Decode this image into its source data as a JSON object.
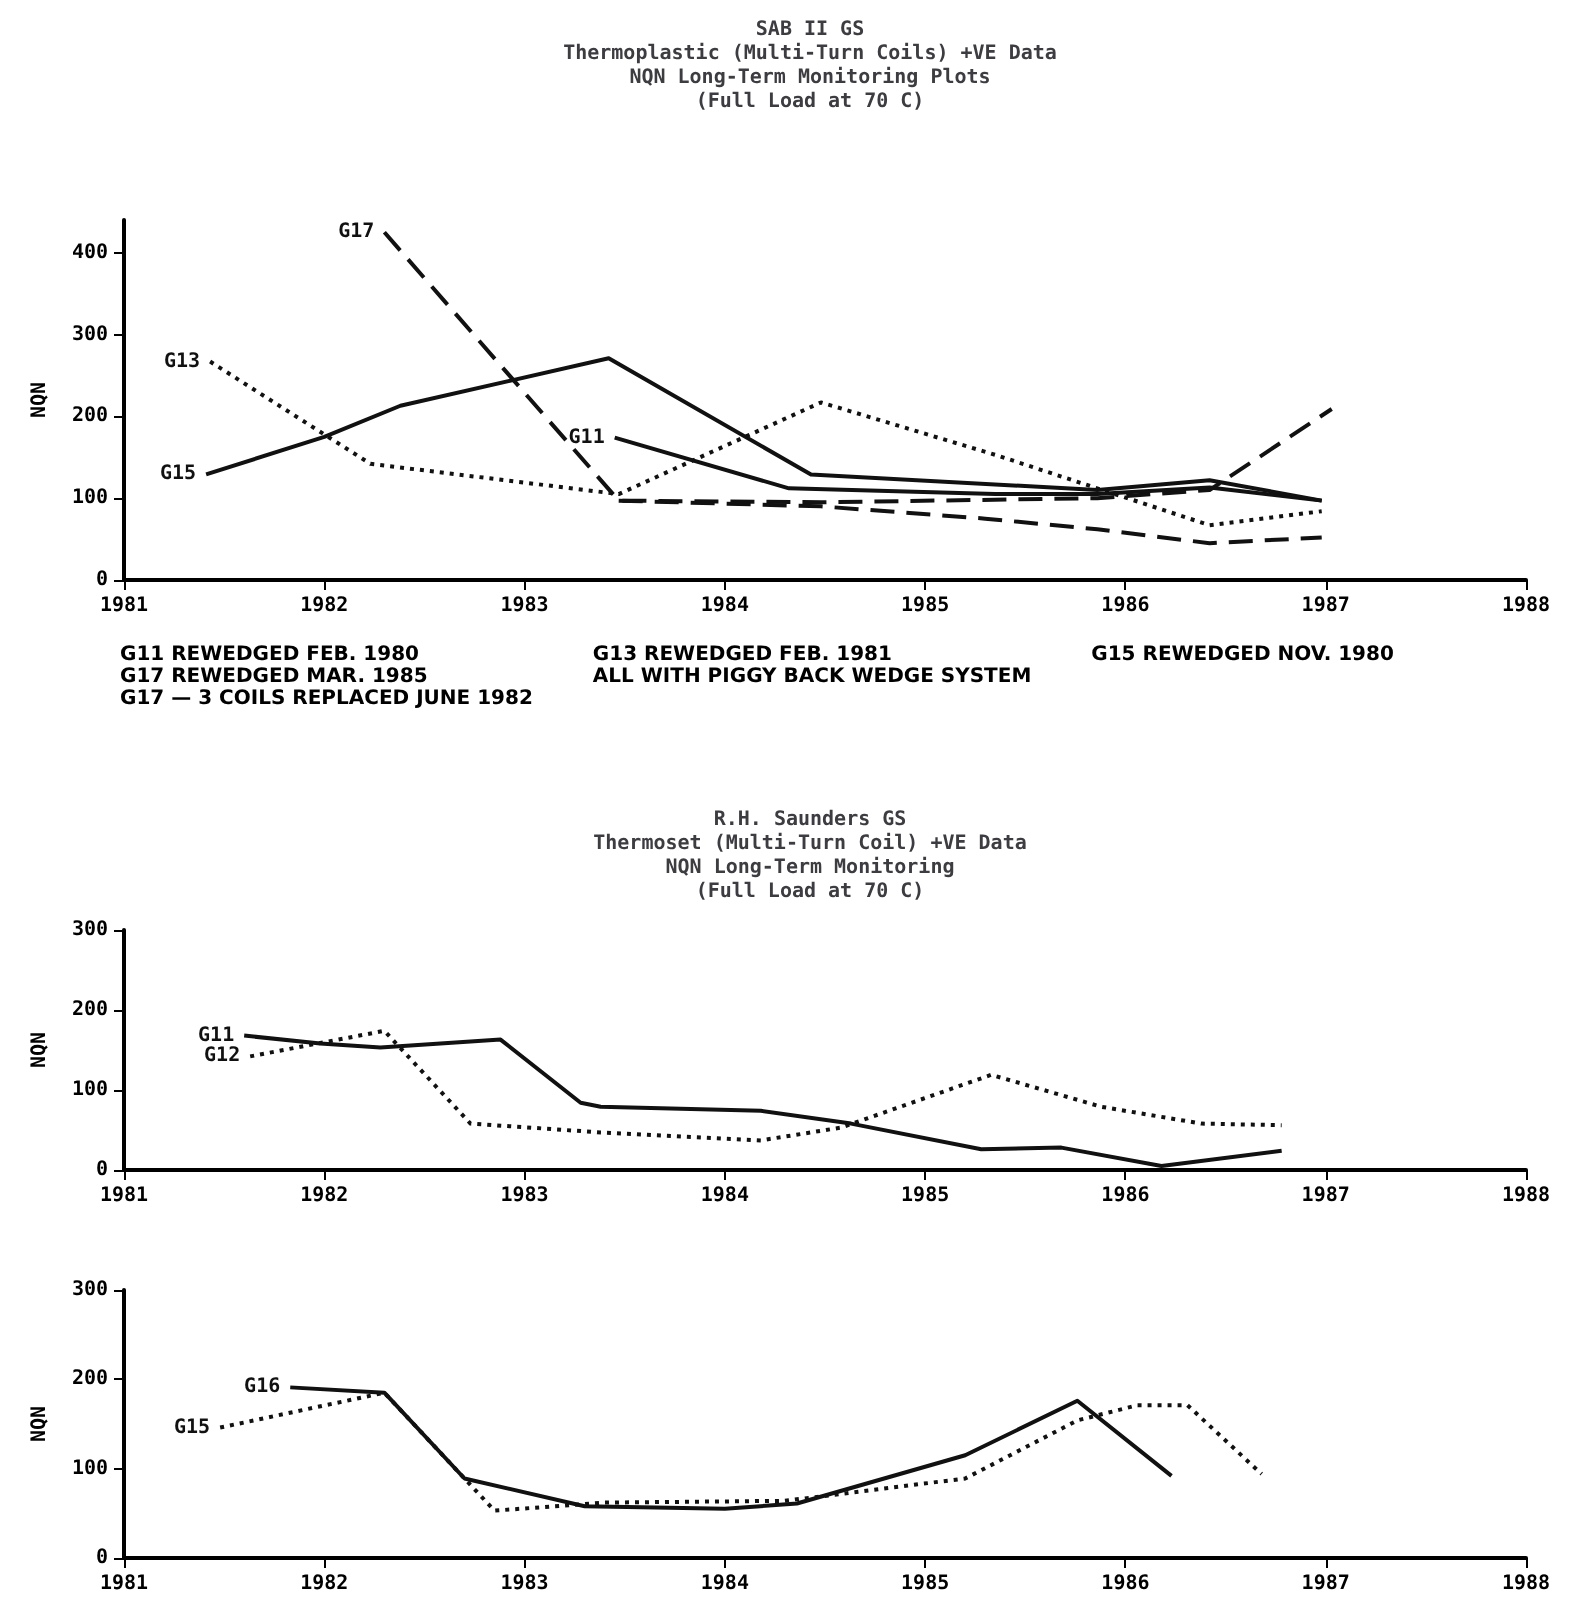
{
  "chart_data": [
    {
      "type": "line",
      "title": "SAB II GS\nThermoplastic (Multi-Turn Coils) +VE Data\nNQN Long-Term Monitoring Plots\n(Full Load at 70 C)",
      "ylabel": "NQN",
      "xlim": [
        1981,
        1988
      ],
      "xticks": [
        1981,
        1982,
        1983,
        1984,
        1985,
        1986,
        1987,
        1988
      ],
      "ylim": [
        0,
        440
      ],
      "yticks": [
        0,
        100,
        200,
        300,
        400
      ],
      "grid": false,
      "legend": false,
      "marker": "none",
      "series": [
        {
          "name": "G17",
          "color": "#111111",
          "line_style": "dashed",
          "x": [
            1982.3,
            1983.47,
            1984.48,
            1985.86,
            1986.42,
            1987.03
          ],
          "values": [
            425,
            97,
            95,
            100,
            110,
            209
          ]
        },
        {
          "name": "G13",
          "color": "#111111",
          "line_style": "dotted",
          "x": [
            1981.43,
            1982.23,
            1983.47,
            1984.48,
            1985.35,
            1986.42,
            1986.98
          ],
          "values": [
            267,
            142,
            105,
            217,
            153,
            67,
            84
          ]
        },
        {
          "name": "G11",
          "color": "#111111",
          "line_style": "solid",
          "x": [
            1983.45,
            1984.32,
            1985.35,
            1985.86,
            1986.42,
            1986.98
          ],
          "values": [
            174,
            112,
            105,
            105,
            113,
            97
          ]
        },
        {
          "name": "G15",
          "color": "#111111",
          "line_style": "solid",
          "x": [
            1981.41,
            1982.0,
            1982.38,
            1983.42,
            1984.43,
            1985.86,
            1986.42,
            1986.98
          ],
          "values": [
            129,
            175,
            213,
            271,
            129,
            110,
            122,
            97
          ]
        },
        {
          "color": "#111111",
          "line_style": "dashed",
          "x": [
            1983.47,
            1984.48,
            1985.3,
            1985.86,
            1986.42,
            1986.98
          ],
          "values": [
            97,
            90,
            75,
            62,
            45,
            52
          ]
        }
      ],
      "annotations": [
        "G11 REWEDGED FEB. 1980\nG17 REWEDGED MAR. 1985\nG17 — 3 COILS REPLACED JUNE 1982",
        "G13 REWEDGED FEB. 1981\nALL WITH PIGGY BACK WEDGE SYSTEM",
        "G15 REWEDGED NOV. 1980"
      ]
    },
    {
      "type": "line",
      "title": "R.H. Saunders GS\nThermoset (Multi-Turn Coil) +VE Data\nNQN Long-Term Monitoring\n(Full Load at 70 C)",
      "ylabel": "NQN",
      "xlim": [
        1981,
        1988
      ],
      "xticks": [
        1981,
        1982,
        1983,
        1984,
        1985,
        1986,
        1987,
        1988
      ],
      "ylim": [
        0,
        300
      ],
      "yticks": [
        0,
        100,
        200,
        300
      ],
      "grid": false,
      "legend": false,
      "marker": "none",
      "series": [
        {
          "name": "G11",
          "color": "#111111",
          "line_style": "solid",
          "x": [
            1981.6,
            1981.98,
            1982.28,
            1982.88,
            1983.28,
            1983.38,
            1984.18,
            1984.63,
            1985.28,
            1985.68,
            1986.18,
            1986.78
          ],
          "values": [
            168,
            158,
            153,
            163,
            84,
            79,
            74,
            58,
            26,
            28,
            5,
            24
          ]
        },
        {
          "name": "G12",
          "color": "#111111",
          "line_style": "dotted",
          "x": [
            1981.63,
            1982.3,
            1982.73,
            1983.38,
            1984.18,
            1984.58,
            1985.33,
            1985.88,
            1986.38,
            1986.78
          ],
          "values": [
            142,
            174,
            58,
            47,
            37,
            53,
            119,
            79,
            58,
            56
          ]
        }
      ]
    },
    {
      "type": "line",
      "ylabel": "NQN",
      "xlim": [
        1981,
        1988
      ],
      "xticks": [
        1981,
        1982,
        1983,
        1984,
        1985,
        1986,
        1987,
        1988
      ],
      "ylim": [
        0,
        300
      ],
      "yticks": [
        0,
        100,
        200,
        300
      ],
      "grid": false,
      "legend": false,
      "marker": "none",
      "series": [
        {
          "name": "G16",
          "color": "#111111",
          "line_style": "solid",
          "x": [
            1981.83,
            1982.3,
            1982.7,
            1983.3,
            1984.0,
            1984.36,
            1985.2,
            1985.76,
            1986.23
          ],
          "values": [
            191,
            185,
            89,
            58,
            55,
            61,
            115,
            176,
            92
          ]
        },
        {
          "name": "G15",
          "color": "#111111",
          "line_style": "dotted",
          "x": [
            1981.48,
            1982.3,
            1982.85,
            1983.4,
            1984.3,
            1985.2,
            1985.76,
            1986.06,
            1986.31,
            1986.68
          ],
          "values": [
            146,
            185,
            53,
            62,
            64,
            89,
            154,
            171,
            171,
            94
          ]
        }
      ]
    }
  ]
}
